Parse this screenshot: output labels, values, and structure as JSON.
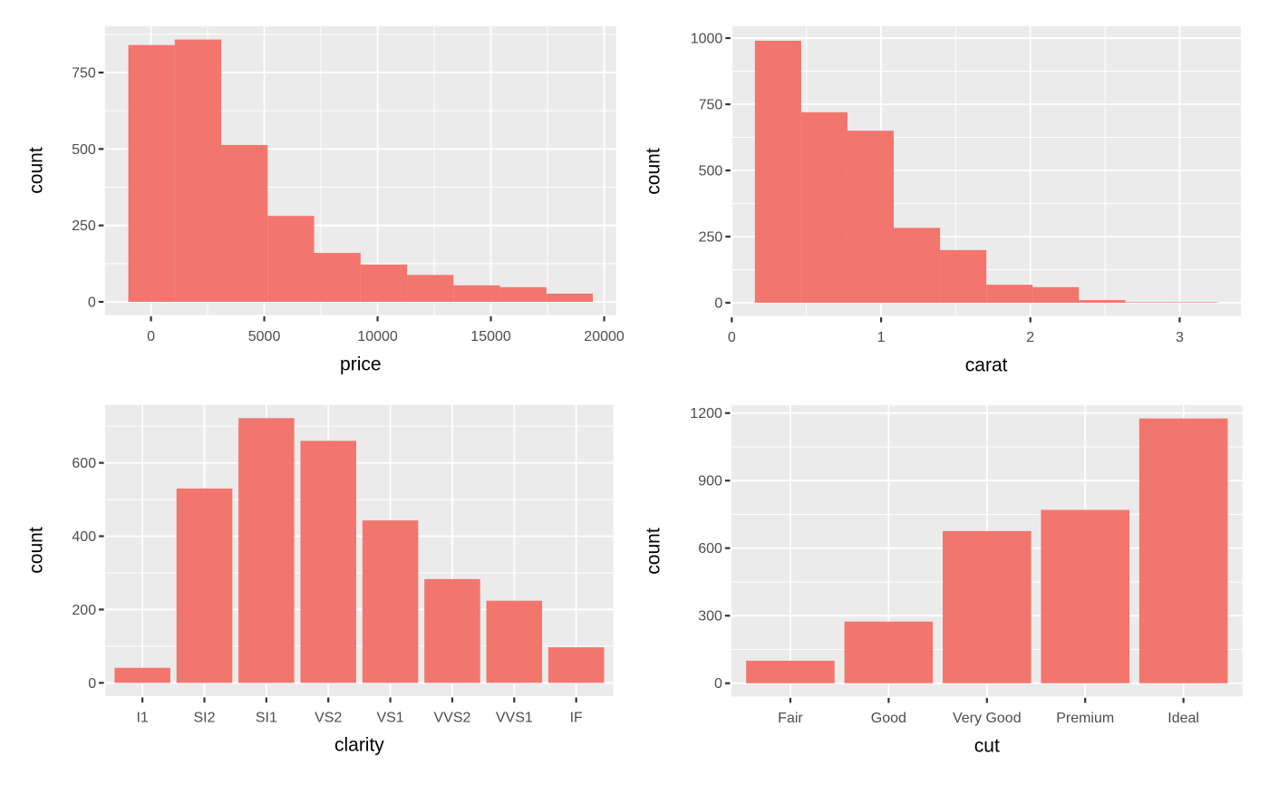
{
  "style": {
    "background": "#FFFFFF",
    "panel_bg": "#EBEBEB",
    "grid_color": "#FFFFFF",
    "bar_fill": "#F26B63",
    "bar_opacity": 0.92,
    "tick_color": "#333333",
    "tick_label_color": "#4D4D4D",
    "axis_title_color": "#000000"
  },
  "chart_data": [
    {
      "id": "price-histogram",
      "type": "bar",
      "subtype": "histogram",
      "title": "",
      "xlabel": "price",
      "ylabel": "count",
      "bin_start": -1000,
      "bin_width": 2050,
      "counts": [
        840,
        858,
        513,
        281,
        160,
        122,
        88,
        54,
        48,
        27
      ],
      "xlim": [
        -2030,
        20530
      ],
      "ylim": [
        -43,
        901
      ],
      "x_tick_values": [
        0,
        5000,
        10000,
        15000,
        20000
      ],
      "x_tick_labels": [
        "0",
        "5000",
        "10000",
        "15000",
        "20000"
      ],
      "x_minor": [
        2500,
        7500,
        12500,
        17500
      ],
      "y_ticks": [
        0,
        250,
        500,
        750
      ],
      "y_tick_labels": [
        "0",
        "250",
        "500",
        "750"
      ],
      "y_minor": [
        125,
        375,
        625,
        875
      ],
      "grid": true,
      "legend": "none"
    },
    {
      "id": "carat-histogram",
      "type": "bar",
      "subtype": "histogram",
      "title": "",
      "xlabel": "carat",
      "ylabel": "count",
      "bin_start": 0.155,
      "bin_width": 0.31,
      "counts": [
        990,
        720,
        650,
        283,
        199,
        68,
        59,
        10,
        2,
        2
      ],
      "xlim": [
        0,
        3.41
      ],
      "ylim": [
        -50,
        1045
      ],
      "x_tick_values": [
        0,
        1,
        2,
        3
      ],
      "x_tick_labels": [
        "0",
        "1",
        "2",
        "3"
      ],
      "x_minor": [
        0.5,
        1.5,
        2.5
      ],
      "y_ticks": [
        0,
        250,
        500,
        750,
        1000
      ],
      "y_tick_labels": [
        "0",
        "250",
        "500",
        "750",
        "1000"
      ],
      "y_minor": [
        125,
        375,
        625,
        875
      ],
      "grid": true,
      "legend": "none"
    },
    {
      "id": "clarity-bar-chart",
      "type": "bar",
      "subtype": "categorical",
      "title": "",
      "xlabel": "clarity",
      "ylabel": "count",
      "categories": [
        "I1",
        "SI2",
        "SI1",
        "VS2",
        "VS1",
        "VVS2",
        "VVS1",
        "IF"
      ],
      "values": [
        41,
        530,
        722,
        660,
        443,
        283,
        224,
        97
      ],
      "ylim": [
        -36,
        758
      ],
      "y_ticks": [
        0,
        200,
        400,
        600
      ],
      "y_tick_labels": [
        "0",
        "200",
        "400",
        "600"
      ],
      "y_minor": [
        100,
        300,
        500,
        700
      ],
      "bar_rel_width": 0.9,
      "grid": true,
      "legend": "none"
    },
    {
      "id": "cut-bar-chart",
      "type": "bar",
      "subtype": "categorical",
      "title": "",
      "xlabel": "cut",
      "ylabel": "count",
      "categories": [
        "Fair",
        "Good",
        "Very Good",
        "Premium",
        "Ideal"
      ],
      "values": [
        100,
        274,
        676,
        770,
        1176
      ],
      "ylim": [
        -59,
        1235
      ],
      "y_ticks": [
        0,
        300,
        600,
        900,
        1200
      ],
      "y_tick_labels": [
        "0",
        "300",
        "600",
        "900",
        "1200"
      ],
      "y_minor": [
        150,
        450,
        750,
        1050
      ],
      "bar_rel_width": 0.9,
      "grid": true,
      "legend": "none"
    }
  ]
}
